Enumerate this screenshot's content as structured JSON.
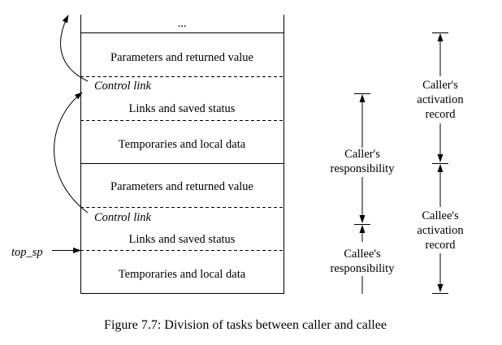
{
  "stack": {
    "ellipsis": "...",
    "upper_record": {
      "params": "Parameters and returned value",
      "control_link": "Control link",
      "links": "Links and saved status",
      "temps": "Temporaries and local data"
    },
    "lower_record": {
      "params": "Parameters and returned value",
      "control_link": "Control link",
      "links": "Links and saved status",
      "temps": "Temporaries and local data"
    }
  },
  "pointer_label": "top_sp",
  "responsibility": {
    "caller": [
      "Caller's",
      "responsibility"
    ],
    "callee": [
      "Callee's",
      "responsibility"
    ]
  },
  "activation": {
    "caller": [
      "Caller's",
      "activation",
      "record"
    ],
    "callee": [
      "Callee's",
      "activation",
      "record"
    ]
  },
  "caption": "Figure 7.7: Division of tasks between caller and callee"
}
